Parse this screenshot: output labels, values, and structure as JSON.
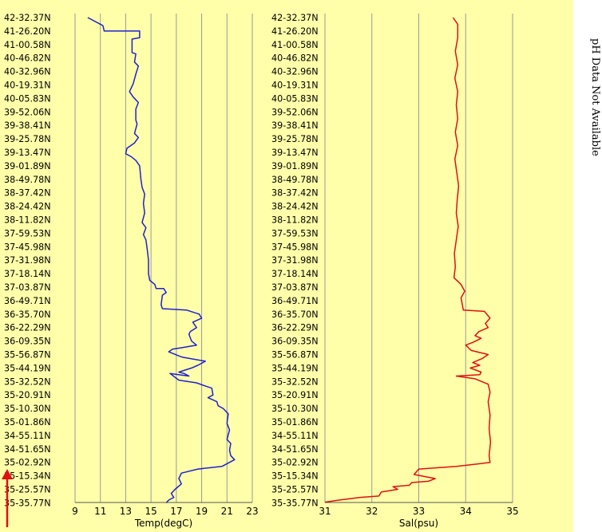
{
  "side_note": "pH Data Not Available",
  "colors": {
    "panel_bg": "#ffffaa",
    "grid": "#9a9a9a",
    "temp_line": "#2020d0",
    "sal_line": "#e01010",
    "arrow": "#e01010"
  },
  "lat_labels": [
    "42-32.37N",
    "41-26.20N",
    "41-00.58N",
    "40-46.82N",
    "40-32.96N",
    "40-19.31N",
    "40-05.83N",
    "39-52.06N",
    "39-38.41N",
    "39-25.78N",
    "39-13.47N",
    "39-01.89N",
    "38-49.78N",
    "38-37.42N",
    "38-24.42N",
    "38-11.82N",
    "37-59.53N",
    "37-45.98N",
    "37-31.98N",
    "37-18.14N",
    "37-03.87N",
    "36-49.71N",
    "36-35.70N",
    "36-22.29N",
    "36-09.35N",
    "35-56.87N",
    "35-44.19N",
    "35-32.52N",
    "35-20.91N",
    "35-10.30N",
    "35-01.86N",
    "34-55.11N",
    "34-51.65N",
    "35-02.92N",
    "35-15.34N",
    "35-25.57N",
    "35-35.77N"
  ],
  "chart_data": [
    {
      "type": "line",
      "xlabel": "Temp(degC)",
      "xlim": [
        9,
        23
      ],
      "xticks": [
        "9",
        "11",
        "13",
        "15",
        "17",
        "19",
        "21",
        "23"
      ],
      "y_categories_ref": "lat_labels",
      "series": [
        {
          "color": "#2020d0",
          "points": [
            [
              10.0,
              0
            ],
            [
              11.2,
              0.6
            ],
            [
              11.3,
              1
            ],
            [
              14.1,
              1
            ],
            [
              14.1,
              1.5
            ],
            [
              13.5,
              1.6
            ],
            [
              13.5,
              2.6
            ],
            [
              13.8,
              2.7
            ],
            [
              13.7,
              3.3
            ],
            [
              14,
              3.6
            ],
            [
              13.8,
              4.2
            ],
            [
              13.6,
              4.9
            ],
            [
              13.3,
              5.5
            ],
            [
              13.6,
              5.9
            ],
            [
              14,
              6.3
            ],
            [
              13.8,
              6.8
            ],
            [
              13.8,
              7.6
            ],
            [
              13.9,
              7.9
            ],
            [
              13.7,
              8.6
            ],
            [
              14.0,
              8.9
            ],
            [
              13.7,
              9.3
            ],
            [
              13.1,
              9.7
            ],
            [
              13.0,
              10.1
            ],
            [
              13.4,
              10.3
            ],
            [
              13.8,
              10.6
            ],
            [
              14.1,
              11
            ],
            [
              14.2,
              12
            ],
            [
              14.3,
              12.6
            ],
            [
              14.5,
              13.1
            ],
            [
              14.4,
              13.8
            ],
            [
              14.5,
              14.5
            ],
            [
              14.3,
              15.2
            ],
            [
              14.6,
              15.6
            ],
            [
              14.4,
              16.1
            ],
            [
              14.6,
              16.5
            ],
            [
              14.7,
              17.2
            ],
            [
              14.8,
              18
            ],
            [
              14.8,
              19
            ],
            [
              14.9,
              19.5
            ],
            [
              15.3,
              19.8
            ],
            [
              15.4,
              20.1
            ],
            [
              16.0,
              20.1
            ],
            [
              16.2,
              20.4
            ],
            [
              15.9,
              20.6
            ],
            [
              15.8,
              21.3
            ],
            [
              15.9,
              21.6
            ],
            [
              17.8,
              21.7
            ],
            [
              18.8,
              22
            ],
            [
              19.0,
              22.3
            ],
            [
              18.3,
              22.6
            ],
            [
              18.6,
              23
            ],
            [
              18.1,
              23.3
            ],
            [
              18.0,
              23.5
            ],
            [
              18.2,
              24.0
            ],
            [
              18.6,
              24.3
            ],
            [
              18.0,
              24.4
            ],
            [
              17.4,
              24.5
            ],
            [
              16.7,
              24.6
            ],
            [
              16.4,
              24.8
            ],
            [
              17.2,
              25.1
            ],
            [
              17.5,
              25.2
            ],
            [
              19.3,
              25.5
            ],
            [
              18.7,
              25.8
            ],
            [
              18.2,
              26.0
            ],
            [
              17.2,
              26.3
            ],
            [
              17.6,
              26.4
            ],
            [
              18.0,
              26.6
            ],
            [
              16.5,
              26.4
            ],
            [
              17.2,
              26.9
            ],
            [
              18.6,
              27.1
            ],
            [
              19.2,
              27.3
            ],
            [
              19.8,
              27.5
            ],
            [
              19.9,
              28.0
            ],
            [
              19.5,
              28.2
            ],
            [
              20.2,
              28.5
            ],
            [
              20.3,
              28.8
            ],
            [
              20.7,
              29.0
            ],
            [
              21.1,
              29.4
            ],
            [
              21.0,
              30.1
            ],
            [
              21.2,
              30.6
            ],
            [
              21.0,
              31.3
            ],
            [
              21.3,
              31.6
            ],
            [
              21.2,
              32.1
            ],
            [
              21.3,
              32.5
            ],
            [
              21.6,
              32.8
            ],
            [
              21.2,
              33.0
            ],
            [
              20.6,
              33.3
            ],
            [
              18.7,
              33.5
            ],
            [
              17.4,
              33.8
            ],
            [
              17.2,
              34.2
            ],
            [
              17.4,
              34.6
            ],
            [
              16.9,
              35.0
            ],
            [
              16.6,
              35.3
            ],
            [
              16.8,
              35.6
            ],
            [
              16.4,
              35.8
            ],
            [
              16.2,
              36.0
            ]
          ]
        }
      ]
    },
    {
      "type": "line",
      "xlabel": "Sal(psu)",
      "xlim": [
        31,
        35
      ],
      "xticks": [
        "31",
        "32",
        "33",
        "34",
        "35"
      ],
      "y_categories_ref": "lat_labels",
      "series": [
        {
          "color": "#e01010",
          "points": [
            [
              33.73,
              0
            ],
            [
              33.83,
              0.5
            ],
            [
              33.83,
              1.5
            ],
            [
              33.78,
              2.5
            ],
            [
              33.83,
              3.5
            ],
            [
              33.77,
              4.5
            ],
            [
              33.83,
              5.5
            ],
            [
              33.8,
              6.5
            ],
            [
              33.83,
              7.5
            ],
            [
              33.78,
              8.5
            ],
            [
              33.83,
              9.5
            ],
            [
              33.77,
              10.5
            ],
            [
              33.81,
              11.5
            ],
            [
              33.85,
              12.5
            ],
            [
              33.82,
              13.5
            ],
            [
              33.8,
              14.5
            ],
            [
              33.84,
              15.5
            ],
            [
              33.8,
              16.5
            ],
            [
              33.76,
              17.5
            ],
            [
              33.78,
              18.5
            ],
            [
              33.75,
              19.3
            ],
            [
              33.9,
              19.8
            ],
            [
              33.98,
              20.3
            ],
            [
              33.9,
              20.8
            ],
            [
              33.93,
              21.3
            ],
            [
              33.95,
              21.7
            ],
            [
              34.4,
              21.8
            ],
            [
              34.52,
              22.3
            ],
            [
              34.42,
              22.7
            ],
            [
              34.48,
              23.0
            ],
            [
              34.28,
              23.3
            ],
            [
              34.2,
              23.6
            ],
            [
              34.33,
              23.8
            ],
            [
              34.15,
              24.1
            ],
            [
              34.0,
              24.3
            ],
            [
              34.12,
              24.7
            ],
            [
              34.48,
              25.0
            ],
            [
              34.35,
              25.3
            ],
            [
              34.15,
              25.6
            ],
            [
              34.3,
              25.8
            ],
            [
              34.1,
              26.0
            ],
            [
              34.33,
              26.3
            ],
            [
              34.3,
              26.5
            ],
            [
              33.8,
              26.6
            ],
            [
              34.2,
              26.8
            ],
            [
              34.48,
              27.2
            ],
            [
              34.52,
              27.8
            ],
            [
              34.48,
              28.5
            ],
            [
              34.52,
              29.5
            ],
            [
              34.5,
              30.5
            ],
            [
              34.53,
              31.5
            ],
            [
              34.5,
              32.5
            ],
            [
              34.52,
              33.0
            ],
            [
              34.3,
              33.1
            ],
            [
              33.8,
              33.3
            ],
            [
              33.0,
              33.5
            ],
            [
              32.9,
              33.9
            ],
            [
              33.35,
              34.2
            ],
            [
              33.2,
              34.4
            ],
            [
              32.85,
              34.5
            ],
            [
              32.8,
              34.7
            ],
            [
              32.45,
              34.8
            ],
            [
              32.55,
              35.0
            ],
            [
              32.2,
              35.2
            ],
            [
              32.15,
              35.5
            ],
            [
              31.75,
              35.6
            ],
            [
              31.3,
              35.8
            ],
            [
              31.0,
              35.95
            ]
          ]
        }
      ]
    }
  ]
}
